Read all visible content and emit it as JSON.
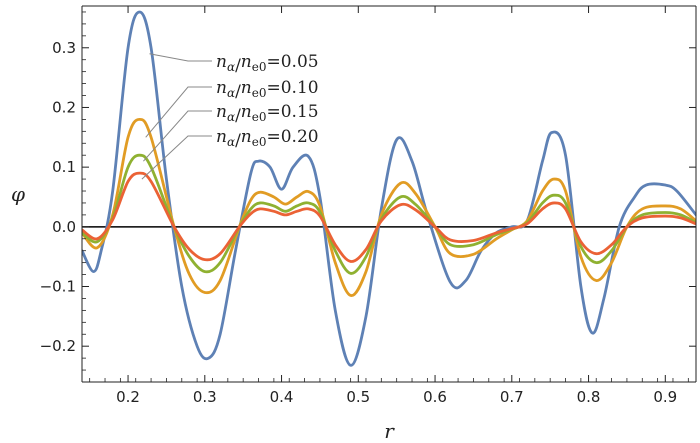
{
  "chart_data": {
    "type": "line",
    "xlabel": "r",
    "ylabel": "φ",
    "xlim": [
      0.14,
      0.94
    ],
    "ylim": [
      -0.26,
      0.37
    ],
    "xticks": [
      0.2,
      0.3,
      0.4,
      0.5,
      0.6,
      0.7,
      0.8,
      0.9
    ],
    "xtick_labels": [
      "0.2",
      "0.3",
      "0.4",
      "0.5",
      "0.6",
      "0.7",
      "0.8",
      "0.9"
    ],
    "yticks": [
      -0.2,
      -0.1,
      0.0,
      0.1,
      0.2,
      0.3
    ],
    "ytick_labels": [
      "−0.2",
      "−0.1",
      "0.0",
      "0.1",
      "0.2",
      "0.3"
    ],
    "zero_line": true,
    "grid": false,
    "legend_position": "top-left",
    "series": [
      {
        "name": "nα/ne0=0.05",
        "label": {
          "pre": "n",
          "sub1": "α",
          "mid": "/",
          "n2": "n",
          "sub2": "e0",
          "value": "=0.05"
        },
        "color": "#5E81B5",
        "x": [
          0.14,
          0.155,
          0.165,
          0.18,
          0.2,
          0.215,
          0.23,
          0.25,
          0.27,
          0.29,
          0.305,
          0.32,
          0.34,
          0.36,
          0.37,
          0.385,
          0.4,
          0.415,
          0.435,
          0.45,
          0.47,
          0.49,
          0.51,
          0.53,
          0.55,
          0.57,
          0.59,
          0.62,
          0.64,
          0.66,
          0.68,
          0.7,
          0.72,
          0.74,
          0.752,
          0.77,
          0.79,
          0.805,
          0.82,
          0.84,
          0.86,
          0.875,
          0.9,
          0.915,
          0.94
        ],
        "y": [
          -0.04,
          -0.075,
          -0.04,
          0.06,
          0.3,
          0.36,
          0.3,
          0.08,
          -0.1,
          -0.2,
          -0.22,
          -0.18,
          -0.04,
          0.09,
          0.11,
          0.1,
          0.063,
          0.1,
          0.118,
          0.05,
          -0.14,
          -0.232,
          -0.15,
          0.03,
          0.146,
          0.11,
          0.02,
          -0.093,
          -0.09,
          -0.04,
          -0.01,
          0.0,
          0.01,
          0.11,
          0.158,
          0.12,
          -0.1,
          -0.178,
          -0.12,
          0.0,
          0.05,
          0.07,
          0.07,
          0.06,
          0.02
        ]
      },
      {
        "name": "nα/ne0=0.10",
        "label": {
          "pre": "n",
          "sub1": "α",
          "mid": "/",
          "n2": "n",
          "sub2": "e0",
          "value": "=0.10"
        },
        "color": "#E19C24",
        "x": [
          0.14,
          0.16,
          0.18,
          0.2,
          0.215,
          0.23,
          0.26,
          0.28,
          0.3,
          0.32,
          0.345,
          0.36,
          0.372,
          0.39,
          0.405,
          0.42,
          0.435,
          0.45,
          0.47,
          0.49,
          0.51,
          0.53,
          0.555,
          0.575,
          0.6,
          0.62,
          0.65,
          0.68,
          0.7,
          0.72,
          0.74,
          0.755,
          0.77,
          0.79,
          0.81,
          0.83,
          0.85,
          0.87,
          0.9,
          0.92,
          0.94
        ],
        "y": [
          -0.01,
          -0.035,
          0.02,
          0.15,
          0.18,
          0.15,
          0.0,
          -0.08,
          -0.11,
          -0.09,
          0.0,
          0.045,
          0.058,
          0.05,
          0.038,
          0.05,
          0.059,
          0.035,
          -0.06,
          -0.115,
          -0.075,
          0.02,
          0.073,
          0.055,
          0.0,
          -0.045,
          -0.046,
          -0.02,
          -0.005,
          0.01,
          0.06,
          0.08,
          0.06,
          -0.05,
          -0.09,
          -0.06,
          0.0,
          0.03,
          0.035,
          0.03,
          0.01
        ]
      },
      {
        "name": "nα/ne0=0.15",
        "label": {
          "pre": "n",
          "sub1": "α",
          "mid": "/",
          "n2": "n",
          "sub2": "e0",
          "value": "=0.15"
        },
        "color": "#8FB131",
        "x": [
          0.14,
          0.16,
          0.18,
          0.2,
          0.215,
          0.23,
          0.26,
          0.28,
          0.3,
          0.32,
          0.345,
          0.36,
          0.372,
          0.39,
          0.405,
          0.42,
          0.435,
          0.45,
          0.47,
          0.49,
          0.51,
          0.53,
          0.555,
          0.575,
          0.6,
          0.62,
          0.65,
          0.68,
          0.7,
          0.72,
          0.74,
          0.755,
          0.77,
          0.79,
          0.81,
          0.83,
          0.85,
          0.87,
          0.9,
          0.92,
          0.94
        ],
        "y": [
          -0.01,
          -0.025,
          0.015,
          0.1,
          0.12,
          0.1,
          0.0,
          -0.05,
          -0.075,
          -0.06,
          0.0,
          0.03,
          0.04,
          0.035,
          0.026,
          0.035,
          0.04,
          0.025,
          -0.04,
          -0.078,
          -0.05,
          0.013,
          0.05,
          0.037,
          0.0,
          -0.03,
          -0.03,
          -0.013,
          -0.004,
          0.007,
          0.04,
          0.053,
          0.04,
          -0.033,
          -0.06,
          -0.04,
          0.0,
          0.02,
          0.024,
          0.02,
          0.007
        ]
      },
      {
        "name": "nα/ne0=0.20",
        "label": {
          "pre": "n",
          "sub1": "α",
          "mid": "/",
          "n2": "n",
          "sub2": "e0",
          "value": "=0.20"
        },
        "color": "#EB6235",
        "x": [
          0.14,
          0.16,
          0.18,
          0.2,
          0.215,
          0.23,
          0.26,
          0.28,
          0.3,
          0.32,
          0.345,
          0.36,
          0.372,
          0.39,
          0.405,
          0.42,
          0.435,
          0.45,
          0.47,
          0.49,
          0.51,
          0.53,
          0.555,
          0.575,
          0.6,
          0.62,
          0.65,
          0.68,
          0.7,
          0.72,
          0.74,
          0.755,
          0.77,
          0.79,
          0.81,
          0.83,
          0.85,
          0.87,
          0.9,
          0.92,
          0.94
        ],
        "y": [
          -0.005,
          -0.02,
          0.012,
          0.076,
          0.09,
          0.076,
          0.0,
          -0.038,
          -0.055,
          -0.045,
          0.0,
          0.022,
          0.03,
          0.026,
          0.02,
          0.026,
          0.03,
          0.018,
          -0.03,
          -0.058,
          -0.038,
          0.01,
          0.037,
          0.028,
          0.0,
          -0.022,
          -0.023,
          -0.01,
          -0.003,
          0.005,
          0.03,
          0.04,
          0.03,
          -0.025,
          -0.045,
          -0.03,
          0.0,
          0.015,
          0.018,
          0.015,
          0.005
        ]
      }
    ]
  }
}
